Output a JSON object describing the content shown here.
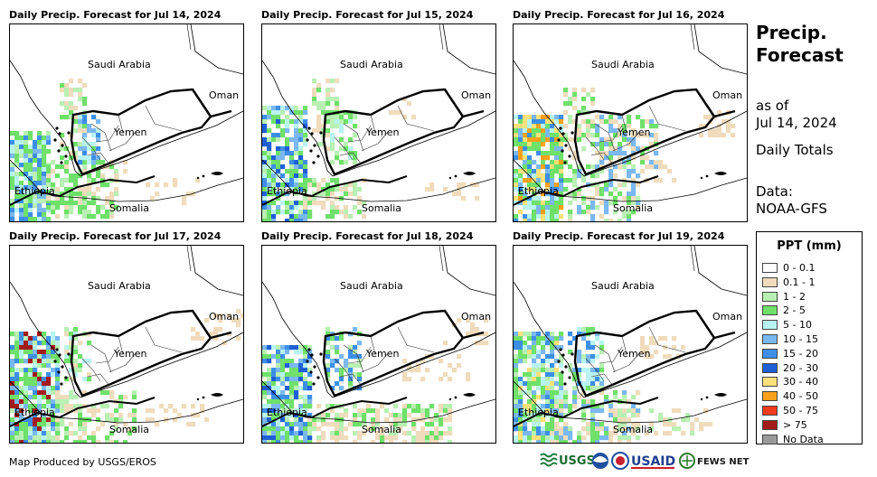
{
  "panels": [
    {
      "title": "Daily Precip. Forecast for Jul 14, 2024",
      "variant": 0
    },
    {
      "title": "Daily Precip. Forecast for Jul 15, 2024",
      "variant": 1
    },
    {
      "title": "Daily Precip. Forecast for Jul 16, 2024",
      "variant": 2
    },
    {
      "title": "Daily Precip. Forecast for Jul 17, 2024",
      "variant": 3
    },
    {
      "title": "Daily Precip. Forecast for Jul 18, 2024",
      "variant": 4
    },
    {
      "title": "Daily Precip. Forecast for Jul 19, 2024",
      "variant": 5
    }
  ],
  "map_labels": {
    "saudi": "Saudi Arabia",
    "oman": "Oman",
    "yemen": "Yemen",
    "ethiopia": "Ethiopia",
    "somalia": "Somalia"
  },
  "side": {
    "title_line1": "Precip.",
    "title_line2": "Forecast",
    "as_of": "as of",
    "date": "Jul 14, 2024",
    "totals": "Daily Totals",
    "data_label": "Data:",
    "data_source": "NOAA-GFS"
  },
  "legend": {
    "title": "PPT (mm)",
    "items": [
      {
        "label": "0 - 0.1",
        "color": "#ffffff"
      },
      {
        "label": "0.1 - 1",
        "color": "#f0dcbc"
      },
      {
        "label": "1 - 2",
        "color": "#b9f0b3"
      },
      {
        "label": "2 - 5",
        "color": "#6fe06a"
      },
      {
        "label": "5 - 10",
        "color": "#b8f3f0"
      },
      {
        "label": "10 - 15",
        "color": "#7ab8ef"
      },
      {
        "label": "15 - 20",
        "color": "#3d8fe6"
      },
      {
        "label": "20 - 30",
        "color": "#1f5fd6"
      },
      {
        "label": "30 - 40",
        "color": "#fde17a"
      },
      {
        "label": "40 - 50",
        "color": "#f7a11a"
      },
      {
        "label": "50 - 75",
        "color": "#ef3a1c"
      },
      {
        "label": "> 75",
        "color": "#a31a1a"
      },
      {
        "label": "No Data",
        "color": "#9a9a9a"
      }
    ]
  },
  "credit": "Map Produced by USGS/EROS",
  "logos": {
    "usgs": "USGS",
    "usaid": "USAID",
    "fewsnet": "FEWS NET"
  }
}
